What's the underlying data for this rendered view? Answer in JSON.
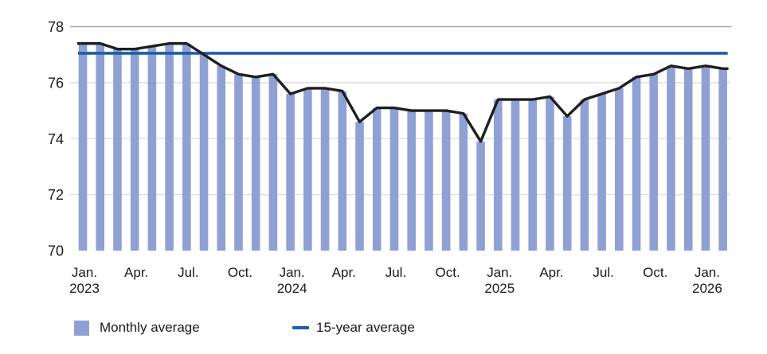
{
  "chart_data": {
    "type": "bar",
    "title": "",
    "x_categories": [
      "Jan. 2023",
      "Feb. 2023",
      "Mar. 2023",
      "Apr. 2023",
      "May 2023",
      "Jun. 2023",
      "Jul. 2023",
      "Aug. 2023",
      "Sep. 2023",
      "Oct. 2023",
      "Nov. 2023",
      "Dec. 2023",
      "Jan. 2024",
      "Feb. 2024",
      "Mar. 2024",
      "Apr. 2024",
      "May 2024",
      "Jun. 2024",
      "Jul. 2024",
      "Aug. 2024",
      "Sep. 2024",
      "Oct. 2024",
      "Nov. 2024",
      "Dec. 2024",
      "Jan. 2025",
      "Feb. 2025",
      "Mar. 2025",
      "Apr. 2025",
      "May 2025",
      "Jun. 2025",
      "Jul. 2025",
      "Aug. 2025",
      "Sep. 2025",
      "Oct. 2025",
      "Nov. 2025",
      "Dec. 2025",
      "Jan. 2026",
      "Feb. 2026"
    ],
    "series": [
      {
        "name": "Monthly average",
        "type": "bar",
        "color": "#8fa0d4",
        "top_line_color": "#1f1f1f",
        "values": [
          77.4,
          77.4,
          77.2,
          77.2,
          77.3,
          77.4,
          77.4,
          77.0,
          76.6,
          76.3,
          76.2,
          76.3,
          75.6,
          75.8,
          75.8,
          75.7,
          74.6,
          75.1,
          75.1,
          75.0,
          75.0,
          75.0,
          74.9,
          73.9,
          75.4,
          75.4,
          75.4,
          75.5,
          74.8,
          75.4,
          75.6,
          75.8,
          76.2,
          76.3,
          76.6,
          76.5,
          76.6,
          76.5
        ]
      },
      {
        "name": "15-year average",
        "type": "line",
        "color": "#1b5dac",
        "value": 77.05
      }
    ],
    "ylim": [
      70,
      78
    ],
    "yticks": [
      "70",
      "72",
      "74",
      "76",
      "78"
    ],
    "ytick_values": [
      70,
      72,
      74,
      76,
      78
    ],
    "xticks": [
      {
        "index": 0,
        "label": "Jan.",
        "year": "2023"
      },
      {
        "index": 3,
        "label": "Apr.",
        "year": ""
      },
      {
        "index": 6,
        "label": "Jul.",
        "year": ""
      },
      {
        "index": 9,
        "label": "Oct.",
        "year": ""
      },
      {
        "index": 12,
        "label": "Jan.",
        "year": "2024"
      },
      {
        "index": 15,
        "label": "Apr.",
        "year": ""
      },
      {
        "index": 18,
        "label": "Jul.",
        "year": ""
      },
      {
        "index": 21,
        "label": "Oct.",
        "year": ""
      },
      {
        "index": 24,
        "label": "Jan.",
        "year": "2025"
      },
      {
        "index": 27,
        "label": "Apr.",
        "year": ""
      },
      {
        "index": 30,
        "label": "Jul.",
        "year": ""
      },
      {
        "index": 33,
        "label": "Oct.",
        "year": ""
      },
      {
        "index": 36,
        "label": "Jan.",
        "year": "2026"
      }
    ],
    "grid": {
      "color": "#d9d9d9",
      "top_color": "#a6a6a6"
    },
    "legend_position": "bottom"
  },
  "legend": {
    "items": [
      {
        "label": "Monthly average",
        "swatch": "bar",
        "color": "#8fa0d4"
      },
      {
        "label": "15-year average",
        "swatch": "line",
        "color": "#1b5dac"
      }
    ]
  },
  "text_color": "#1a1a1a"
}
